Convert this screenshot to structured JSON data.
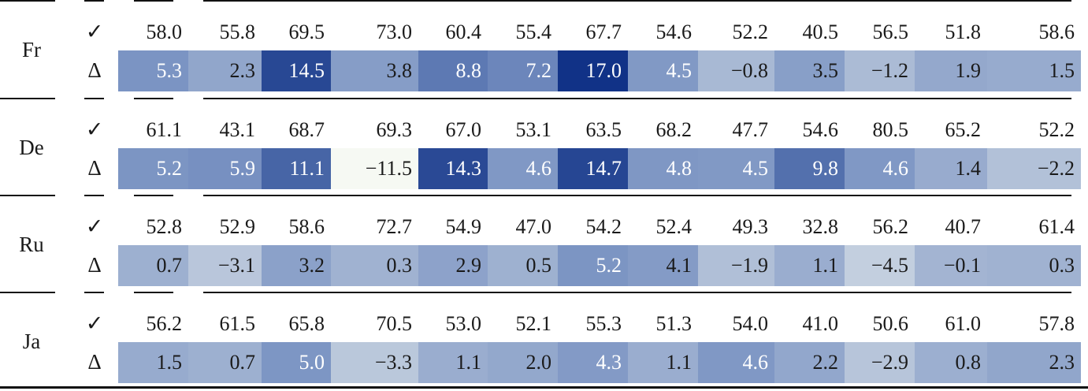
{
  "columns_count": 13,
  "markers": {
    "accuracy": "✓",
    "delta": "Δ"
  },
  "groups": [
    {
      "lang": "Fr",
      "acc": [
        "58.0",
        "55.8",
        "69.5",
        "73.0",
        "60.4",
        "55.4",
        "67.7",
        "54.6",
        "52.2",
        "40.5",
        "56.5",
        "51.8",
        "58.6"
      ],
      "delta": [
        "5.3",
        "2.3",
        "14.5",
        "3.8",
        "8.8",
        "7.2",
        "17.0",
        "4.5",
        "−0.8",
        "3.5",
        "−1.2",
        "1.9",
        "1.5"
      ]
    },
    {
      "lang": "De",
      "acc": [
        "61.1",
        "43.1",
        "68.7",
        "69.3",
        "67.0",
        "53.1",
        "63.5",
        "68.2",
        "47.7",
        "54.6",
        "80.5",
        "65.2",
        "52.2"
      ],
      "delta": [
        "5.2",
        "5.9",
        "11.1",
        "−11.5",
        "14.3",
        "4.6",
        "14.7",
        "4.8",
        "4.5",
        "9.8",
        "4.6",
        "1.4",
        "−2.2"
      ]
    },
    {
      "lang": "Ru",
      "acc": [
        "52.8",
        "52.9",
        "58.6",
        "72.7",
        "54.9",
        "47.0",
        "54.2",
        "52.4",
        "49.3",
        "32.8",
        "56.2",
        "40.7",
        "61.4"
      ],
      "delta": [
        "0.7",
        "−3.1",
        "3.2",
        "0.3",
        "2.9",
        "0.5",
        "5.2",
        "4.1",
        "−1.9",
        "1.1",
        "−4.5",
        "−0.1",
        "0.3"
      ]
    },
    {
      "lang": "Ja",
      "acc": [
        "56.2",
        "61.5",
        "65.8",
        "70.5",
        "53.0",
        "52.1",
        "55.3",
        "51.3",
        "54.0",
        "41.0",
        "50.6",
        "61.0",
        "57.8"
      ],
      "delta": [
        "1.5",
        "0.7",
        "5.0",
        "−3.3",
        "1.1",
        "2.0",
        "4.3",
        "1.1",
        "4.6",
        "2.2",
        "−2.9",
        "0.8",
        "2.3"
      ]
    }
  ]
}
